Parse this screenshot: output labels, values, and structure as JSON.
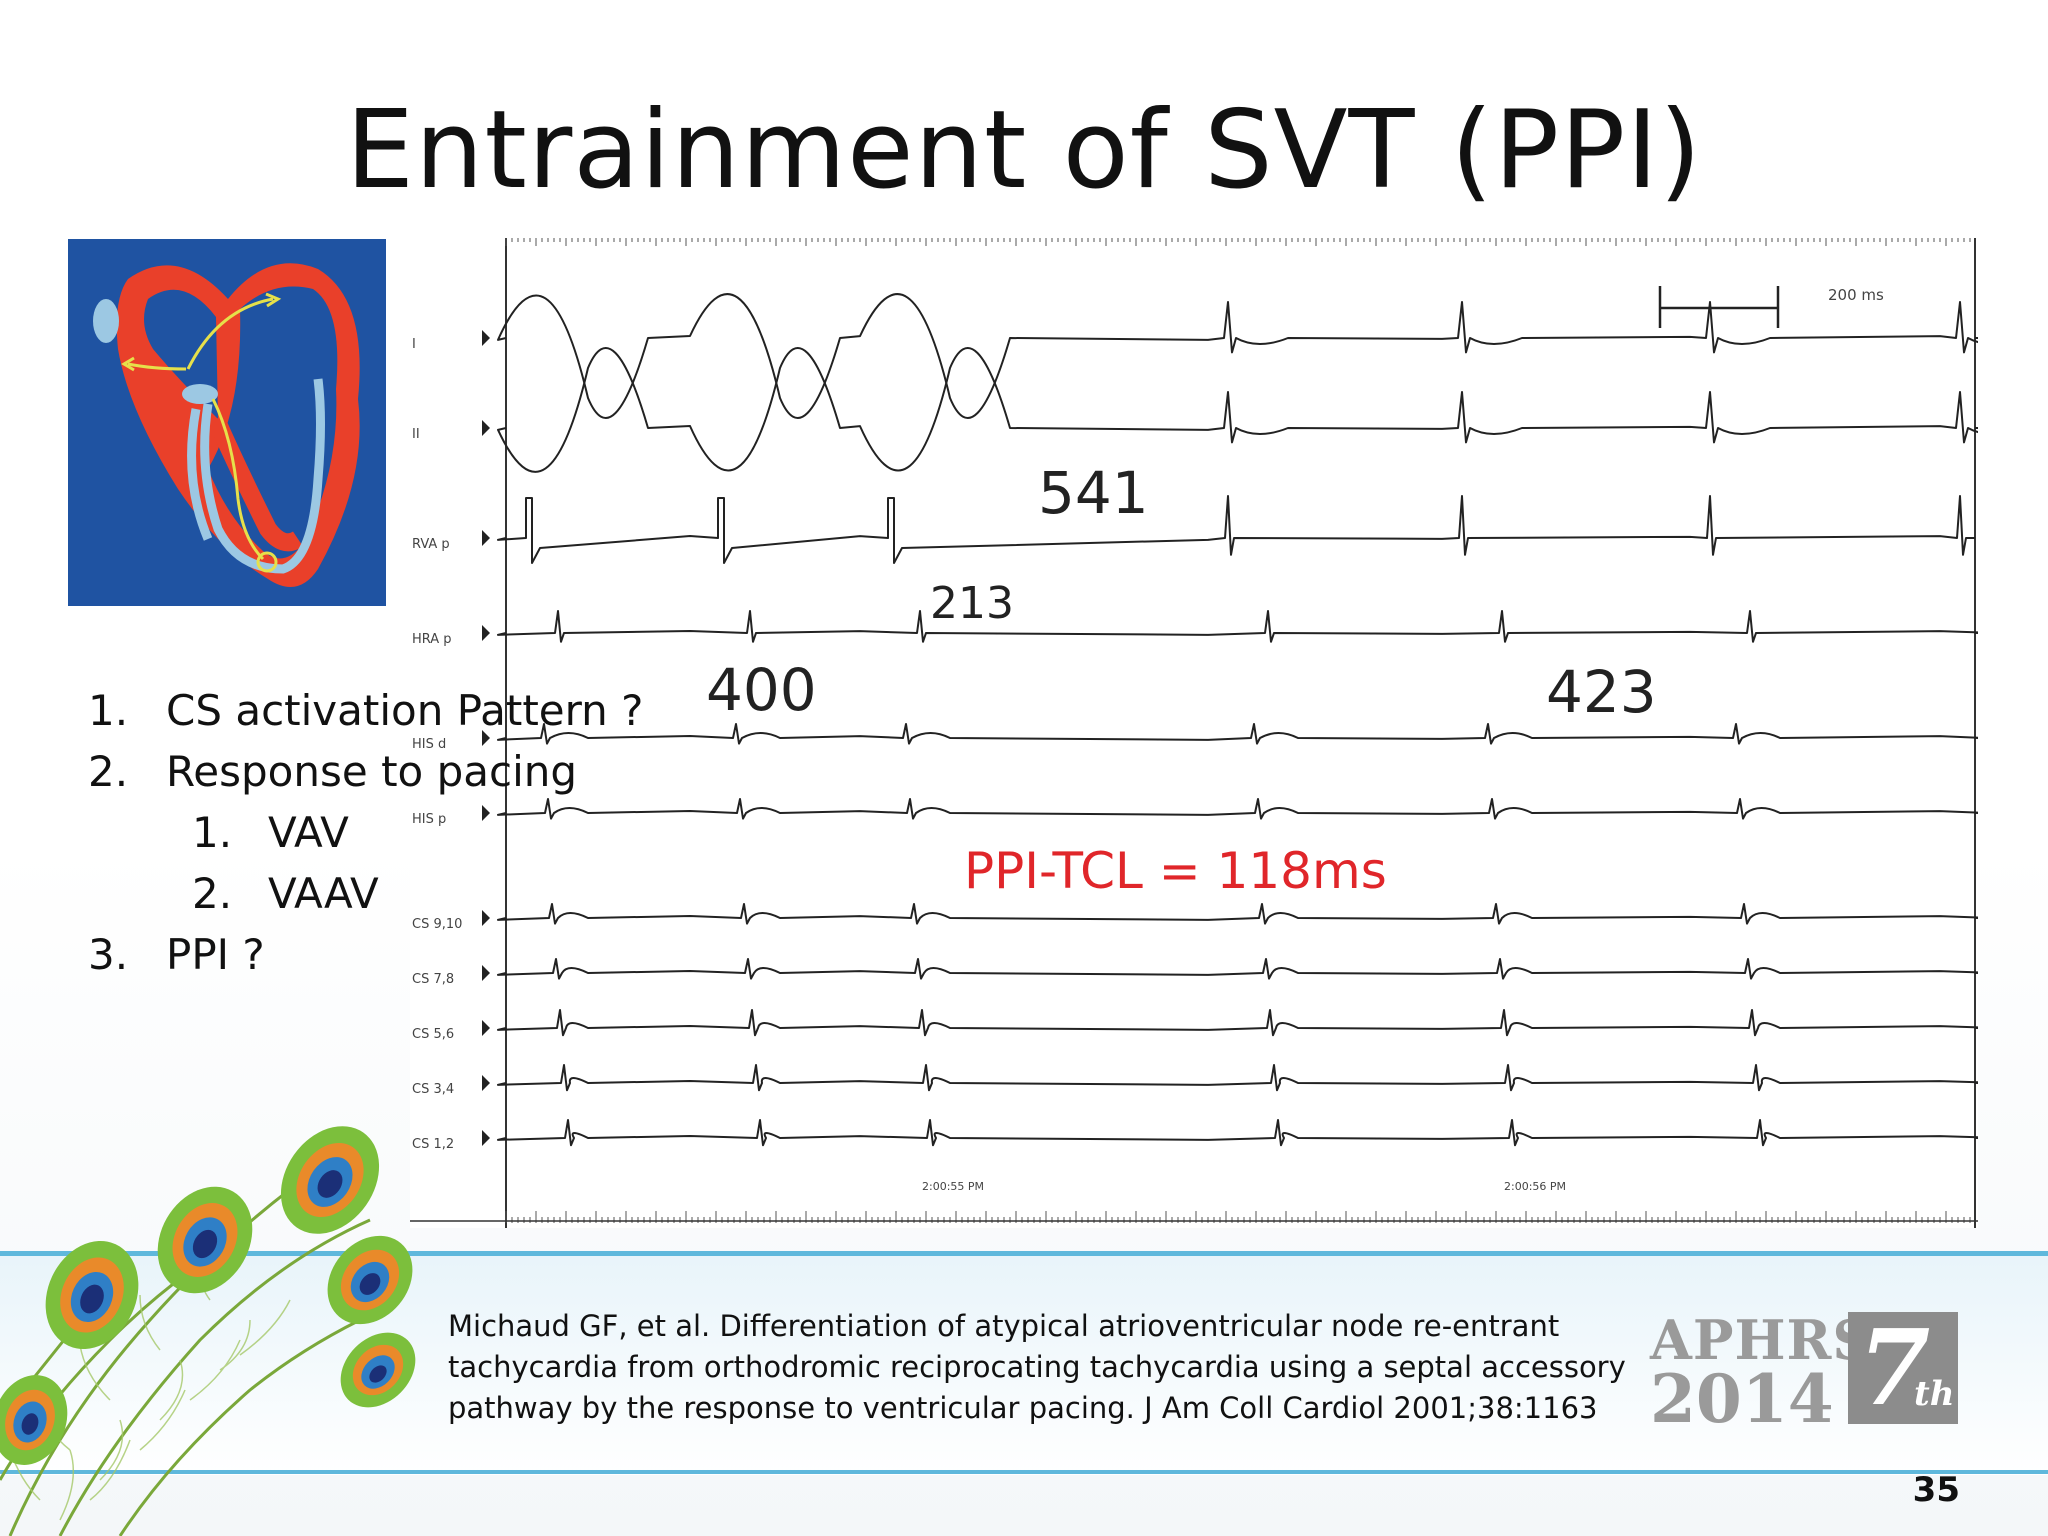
{
  "slide": {
    "title": "Entrainment of SVT (PPI)",
    "page_number": "35"
  },
  "list": {
    "items": [
      {
        "num": "1.",
        "text": "CS activation Pattern ?"
      },
      {
        "num": "2.",
        "text": "Response to pacing"
      },
      {
        "num": "1.",
        "text": "VAV"
      },
      {
        "num": "2.",
        "text": "VAAV"
      },
      {
        "num": "3.",
        "text": "PPI ?"
      }
    ]
  },
  "ecg": {
    "lead_labels": [
      "I",
      "II",
      "RVA p",
      "HRA p",
      "HIS d",
      "HIS p",
      "CS 9,10",
      "CS 7,8",
      "CS 5,6",
      "CS 3,4",
      "CS 1,2"
    ],
    "scale_label": "200 ms",
    "intervals": {
      "i541": "541",
      "i213": "213",
      "i400": "400",
      "i423": "423"
    },
    "ppi_label": "PPI-TCL = 118ms",
    "timestamps": [
      "2:00:55 PM",
      "2:00:56 PM"
    ],
    "colors": {
      "ppi_text": "#e0262a",
      "trace": "#222222"
    }
  },
  "citation": "Michaud GF, et al. Differentiation of atypical atrioventricular node re-entrant tachycardia from orthodromic reciprocating tachycardia using a septal accessory pathway by the response to ventricular pacing. J Am Coll Cardiol 2001;38:1163",
  "logo": {
    "line1": "APHRS",
    "line2": "2014",
    "num": "7",
    "sup": "th"
  },
  "colors": {
    "band": "#5fb8dc",
    "heart_bg": "#1f53a2",
    "heart_red": "#e9402a"
  }
}
